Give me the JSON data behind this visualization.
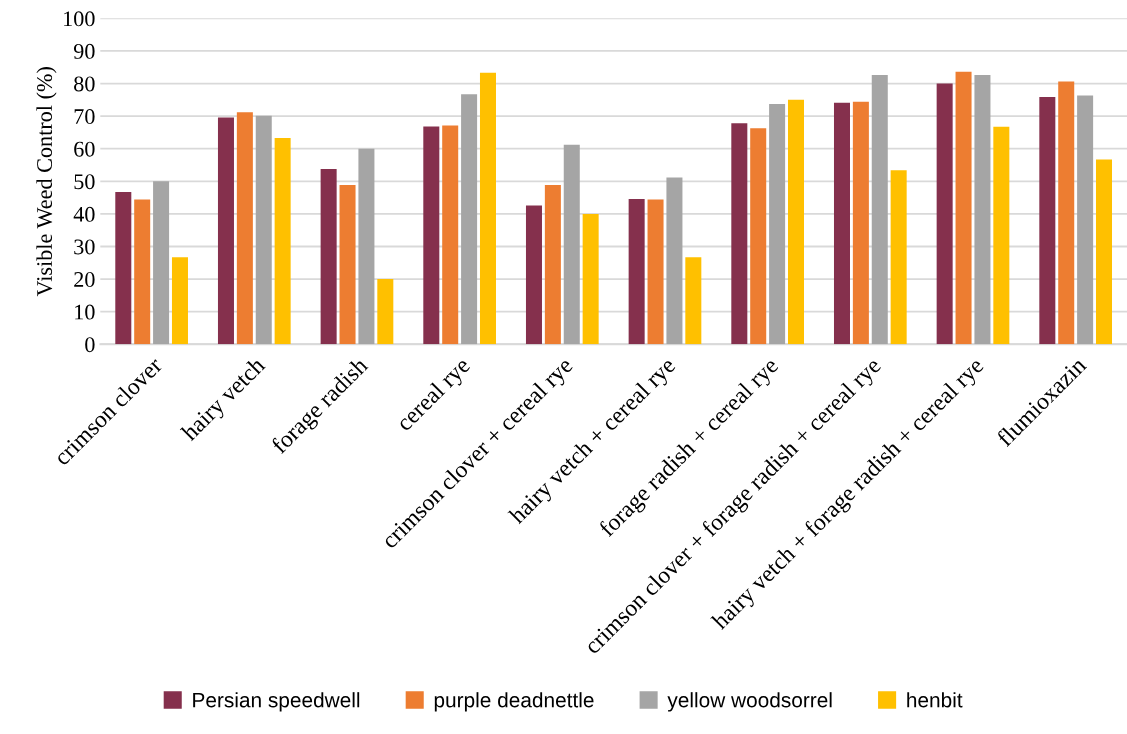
{
  "chart_data": {
    "type": "bar",
    "ylabel": "Visible Weed Control (%)",
    "categories": [
      "crimson clover",
      "hairy vetch",
      "forage radish",
      "cereal rye",
      "crimson clover + cereal rye",
      "hairy vetch + cereal rye",
      "forage radish + cereal rye",
      "crimson clover + forage radish + cereal rye",
      "hairy vetch + forage radish + cereal rye",
      "flumioxazin"
    ],
    "series": [
      {
        "name": "Persian speedwell",
        "color": "#85304d",
        "values": [
          46.7,
          69.6,
          53.8,
          66.8,
          42.6,
          44.6,
          67.8,
          74.1,
          80,
          75.9
        ]
      },
      {
        "name": "purple deadnettle",
        "color": "#ed7d31",
        "values": [
          44.4,
          71.2,
          48.9,
          67.1,
          48.9,
          44.4,
          66.3,
          74.4,
          83.6,
          80.6
        ]
      },
      {
        "name": "yellow woodsorrel",
        "color": "#a5a5a5",
        "values": [
          50,
          70.1,
          60,
          76.7,
          61.2,
          51.2,
          73.7,
          82.6,
          82.6,
          76.3
        ]
      },
      {
        "name": "henbit",
        "color": "#ffc000",
        "values": [
          26.7,
          63.3,
          20,
          83.3,
          40,
          26.7,
          75,
          53.4,
          66.7,
          56.7
        ]
      }
    ],
    "ylim": [
      0,
      100
    ],
    "yticks": [
      0,
      10,
      20,
      30,
      40,
      50,
      60,
      70,
      80,
      90,
      100
    ],
    "grid": "y",
    "legend": "bottom"
  }
}
